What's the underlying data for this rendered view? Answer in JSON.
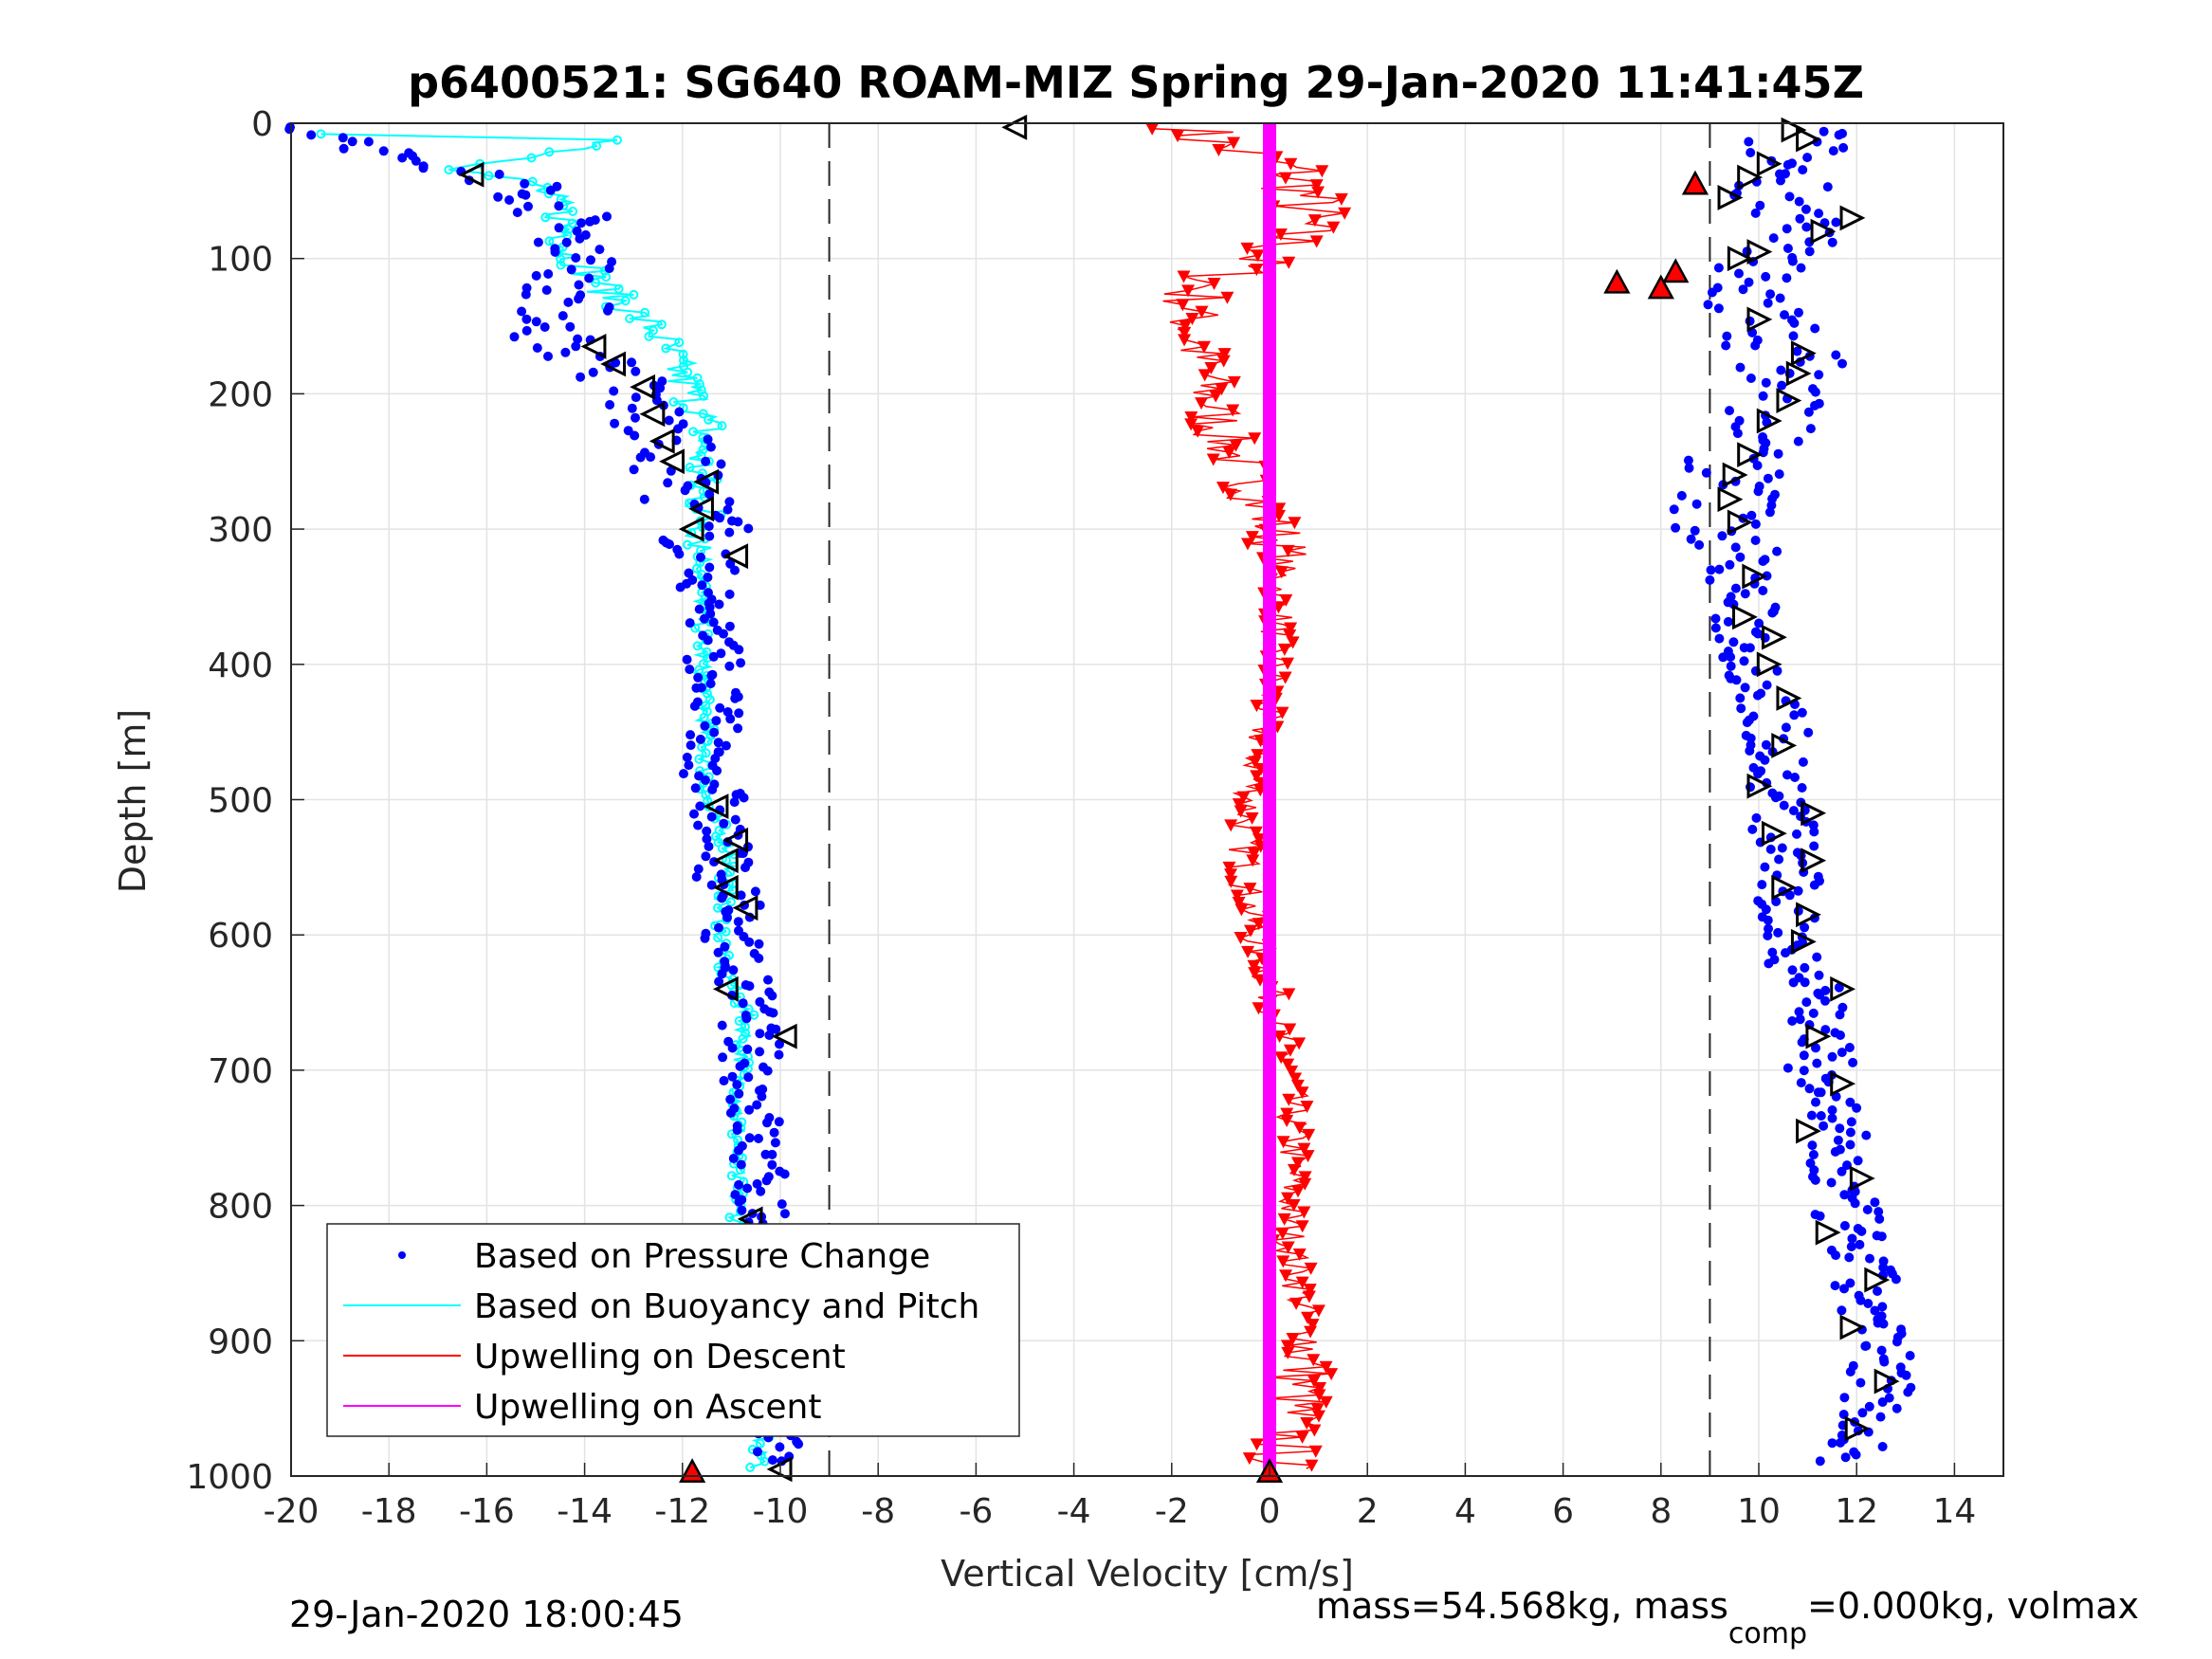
{
  "chart_data": {
    "type": "scatter",
    "title": "p6400521: SG640 ROAM-MIZ Spring 29-Jan-2020 11:41:45Z",
    "xlabel": "Vertical Velocity [cm/s]",
    "ylabel": "Depth [m]",
    "xlim": [
      -20,
      15
    ],
    "ylim": [
      0,
      1000
    ],
    "y_reversed": true,
    "grid": true,
    "x_ticks": [
      -20,
      -18,
      -16,
      -14,
      -12,
      -10,
      -8,
      -6,
      -4,
      -2,
      0,
      2,
      4,
      6,
      8,
      10,
      12,
      14
    ],
    "y_ticks": [
      0,
      100,
      200,
      300,
      400,
      500,
      600,
      700,
      800,
      900,
      1000
    ],
    "reference_lines_x": [
      -9,
      9
    ],
    "legend_position": "bottom-left",
    "legend": [
      {
        "label": "Based on Pressure Change",
        "color": "#0000ff",
        "style": "dot"
      },
      {
        "label": "Based on Buoyancy and Pitch",
        "color": "#00ffff",
        "style": "line"
      },
      {
        "label": "Upwelling on Descent",
        "color": "#ff0000",
        "style": "line"
      },
      {
        "label": "Upwelling on Ascent",
        "color": "#ff00ff",
        "style": "line"
      }
    ],
    "series": [
      {
        "name": "Based on Pressure Change",
        "color": "#0000ff",
        "descent_profile": [
          [
            -19.8,
            3
          ],
          [
            -18,
            25
          ],
          [
            -17,
            35
          ],
          [
            -15.5,
            40
          ],
          [
            -14.5,
            65
          ],
          [
            -14,
            90
          ],
          [
            -14.3,
            125
          ],
          [
            -14.6,
            160
          ],
          [
            -13.5,
            180
          ],
          [
            -12.9,
            205
          ],
          [
            -12.3,
            240
          ],
          [
            -11.8,
            280
          ],
          [
            -11.5,
            300
          ],
          [
            -11.5,
            340
          ],
          [
            -11.3,
            400
          ],
          [
            -11.5,
            460
          ],
          [
            -11.3,
            500
          ],
          [
            -11.2,
            540
          ],
          [
            -11,
            580
          ],
          [
            -10.9,
            620
          ],
          [
            -10.6,
            660
          ],
          [
            -10.6,
            700
          ],
          [
            -10.5,
            760
          ],
          [
            -10.4,
            800
          ],
          [
            -10.2,
            850
          ],
          [
            -9.5,
            900
          ],
          [
            -9.8,
            950
          ],
          [
            -10.2,
            990
          ]
        ],
        "ascent_profile": [
          [
            10.8,
            5
          ],
          [
            10.5,
            40
          ],
          [
            10.8,
            75
          ],
          [
            10,
            100
          ],
          [
            9.9,
            140
          ],
          [
            10.7,
            175
          ],
          [
            10.4,
            215
          ],
          [
            9.5,
            255
          ],
          [
            9.3,
            290
          ],
          [
            9.6,
            325
          ],
          [
            9.7,
            370
          ],
          [
            10,
            410
          ],
          [
            10.4,
            450
          ],
          [
            10.4,
            500
          ],
          [
            10.6,
            540
          ],
          [
            10.5,
            580
          ],
          [
            10.8,
            615
          ],
          [
            11.3,
            650
          ],
          [
            11.2,
            690
          ],
          [
            11.5,
            730
          ],
          [
            11.5,
            770
          ],
          [
            11.8,
            810
          ],
          [
            12.1,
            850
          ],
          [
            12.3,
            890
          ],
          [
            12.6,
            930
          ],
          [
            12.2,
            965
          ],
          [
            11.8,
            990
          ]
        ]
      },
      {
        "name": "Based on Buoyancy and Pitch",
        "color": "#00ffff",
        "profile": [
          [
            -19.8,
            8
          ],
          [
            -13,
            12
          ],
          [
            -16.5,
            35
          ],
          [
            -15,
            45
          ],
          [
            -14.4,
            70
          ],
          [
            -14.3,
            95
          ],
          [
            -13.5,
            125
          ],
          [
            -12.5,
            155
          ],
          [
            -12,
            190
          ],
          [
            -11.5,
            225
          ],
          [
            -11.7,
            260
          ],
          [
            -11.5,
            300
          ],
          [
            -11.6,
            340
          ],
          [
            -11.6,
            400
          ],
          [
            -11.5,
            460
          ],
          [
            -11.5,
            500
          ],
          [
            -11,
            540
          ],
          [
            -11.2,
            580
          ],
          [
            -11.2,
            620
          ],
          [
            -10.7,
            660
          ],
          [
            -10.8,
            700
          ],
          [
            -10.9,
            760
          ],
          [
            -10.9,
            800
          ],
          [
            -10.7,
            850
          ],
          [
            -10.3,
            900
          ],
          [
            -10.3,
            950
          ],
          [
            -10.5,
            995
          ]
        ]
      },
      {
        "name": "Upwelling on Descent",
        "color": "#ff0000",
        "profile": [
          [
            -1.5,
            10
          ],
          [
            0.5,
            35
          ],
          [
            0.8,
            65
          ],
          [
            0.3,
            90
          ],
          [
            -1.6,
            125
          ],
          [
            -1.6,
            150
          ],
          [
            -1.3,
            190
          ],
          [
            -1,
            230
          ],
          [
            -0.3,
            270
          ],
          [
            0.2,
            310
          ],
          [
            0.2,
            350
          ],
          [
            0.1,
            400
          ],
          [
            -0.2,
            460
          ],
          [
            -0.5,
            520
          ],
          [
            -0.5,
            560
          ],
          [
            -0.3,
            600
          ],
          [
            0.1,
            650
          ],
          [
            0.4,
            700
          ],
          [
            0.5,
            760
          ],
          [
            0.4,
            820
          ],
          [
            0.6,
            860
          ],
          [
            0.8,
            900
          ],
          [
            0.5,
            950
          ],
          [
            0.2,
            990
          ]
        ]
      },
      {
        "name": "Upwelling on Ascent",
        "color": "#ff00ff",
        "profile": [
          [
            0,
            0
          ],
          [
            0,
            1000
          ]
        ]
      }
    ],
    "markers": {
      "descent_triangles": [
        [
          -5.2,
          3
        ],
        [
          -16.3,
          38
        ],
        [
          -13.8,
          165
        ],
        [
          -13.4,
          178
        ],
        [
          -12.8,
          195
        ],
        [
          -12.6,
          215
        ],
        [
          -12.4,
          235
        ],
        [
          -12.2,
          250
        ],
        [
          -11.5,
          265
        ],
        [
          -11.6,
          285
        ],
        [
          -11.8,
          300
        ],
        [
          -10.9,
          320
        ],
        [
          -11.3,
          505
        ],
        [
          -10.9,
          530
        ],
        [
          -11.1,
          545
        ],
        [
          -11.1,
          565
        ],
        [
          -10.7,
          580
        ],
        [
          -11.1,
          640
        ],
        [
          -9.9,
          675
        ],
        [
          -10.6,
          810
        ],
        [
          -10.5,
          870
        ],
        [
          -9.6,
          905
        ],
        [
          -9.9,
          925
        ],
        [
          -9.7,
          955
        ],
        [
          -10.0,
          995
        ]
      ],
      "ascent_triangles": [
        [
          10.7,
          5
        ],
        [
          11,
          12
        ],
        [
          10.2,
          30
        ],
        [
          9.8,
          40
        ],
        [
          9.4,
          55
        ],
        [
          11.9,
          70
        ],
        [
          11.3,
          80
        ],
        [
          10.0,
          95
        ],
        [
          9.6,
          100
        ],
        [
          10.0,
          145
        ],
        [
          10.9,
          170
        ],
        [
          10.8,
          185
        ],
        [
          10.6,
          205
        ],
        [
          10.2,
          220
        ],
        [
          9.8,
          245
        ],
        [
          9.5,
          260
        ],
        [
          9.4,
          278
        ],
        [
          9.6,
          295
        ],
        [
          9.9,
          335
        ],
        [
          9.7,
          365
        ],
        [
          10.3,
          380
        ],
        [
          10.2,
          400
        ],
        [
          10.6,
          425
        ],
        [
          10.5,
          460
        ],
        [
          10.0,
          490
        ],
        [
          11.1,
          510
        ],
        [
          10.3,
          525
        ],
        [
          11.1,
          545
        ],
        [
          10.5,
          565
        ],
        [
          11.0,
          585
        ],
        [
          10.9,
          605
        ],
        [
          11.7,
          640
        ],
        [
          11.2,
          675
        ],
        [
          11.7,
          710
        ],
        [
          11.0,
          745
        ],
        [
          12.1,
          780
        ],
        [
          11.4,
          820
        ],
        [
          12.4,
          855
        ],
        [
          11.9,
          890
        ],
        [
          12.6,
          930
        ],
        [
          12.0,
          965
        ]
      ],
      "red_triangles_up": [
        [
          8.7,
          45
        ],
        [
          8.3,
          110
        ],
        [
          7.1,
          118
        ],
        [
          8.0,
          122
        ],
        [
          -11.8,
          997
        ],
        [
          0,
          997
        ]
      ]
    },
    "footer_left": "29-Jan-2020 18:00:45",
    "footer_right_prefix": "mass=54.568kg, mass",
    "footer_right_sub": "comp",
    "footer_right_suffix": "=0.000kg, volmax"
  }
}
